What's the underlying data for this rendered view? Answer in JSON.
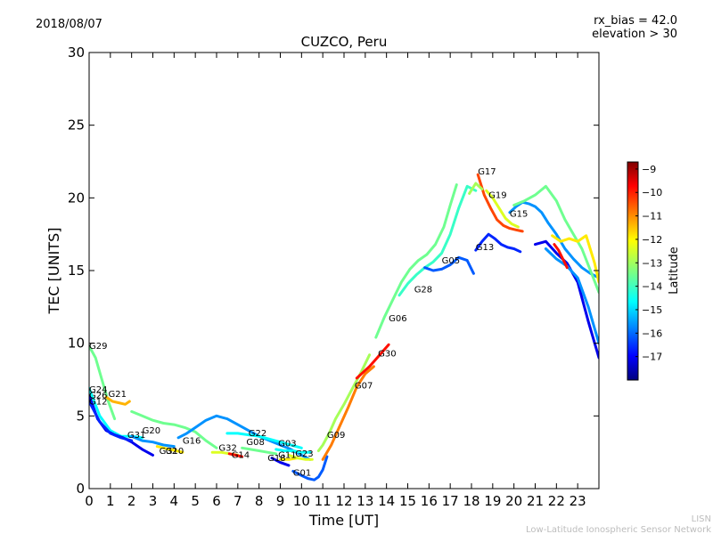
{
  "header": {
    "date": "2018/08/07",
    "rx_bias": "rx_bias = 42.0",
    "elevation": "elevation > 30"
  },
  "footer": {
    "line1": "LISN",
    "line2": "Low-Latitude Ionospheric Sensor Network"
  },
  "chart_data": {
    "type": "line",
    "title": "CUZCO, Peru",
    "xlabel": "Time [UT]",
    "ylabel": "TEC [UNITS]",
    "xlim": [
      0,
      24
    ],
    "ylim": [
      0,
      30
    ],
    "xticks": [
      0,
      1,
      2,
      3,
      4,
      5,
      6,
      7,
      8,
      9,
      10,
      11,
      12,
      13,
      14,
      15,
      16,
      17,
      18,
      19,
      20,
      21,
      22,
      23
    ],
    "yticks": [
      0,
      5,
      10,
      15,
      20,
      25,
      30
    ],
    "grid": false,
    "colorbar": {
      "label": "Latitude",
      "range": [
        -18,
        -8.7
      ],
      "ticks": [
        -17,
        -16,
        -15,
        -14,
        -13,
        -12,
        -11,
        -10,
        -9
      ],
      "colormap": "jet",
      "colors": [
        "#00007f",
        "#0000ff",
        "#007fff",
        "#00ffff",
        "#7fff7f",
        "#ffff00",
        "#ff7f00",
        "#ff0000",
        "#7f0000"
      ]
    },
    "series": [
      {
        "name": "G29",
        "lat": -13.5,
        "x": [
          0.0,
          0.3,
          0.6,
          0.9,
          1.2
        ],
        "y": [
          9.8,
          9.0,
          7.5,
          6.0,
          4.8
        ]
      },
      {
        "name": "G24",
        "lat": -14.5,
        "x": [
          0.0,
          0.5,
          1.0,
          1.5,
          2.0,
          2.5
        ],
        "y": [
          6.9,
          5.0,
          4.0,
          3.6,
          3.6,
          3.5
        ]
      },
      {
        "name": "G26",
        "lat": -17.0,
        "x": [
          0.0,
          0.4,
          0.8,
          1.2,
          1.6,
          2.0,
          2.5,
          3.0
        ],
        "y": [
          6.4,
          4.8,
          4.0,
          3.7,
          3.5,
          3.2,
          2.7,
          2.3
        ]
      },
      {
        "name": "G12",
        "lat": -16.5,
        "x": [
          0.0,
          0.5,
          1.0,
          1.5,
          2.0
        ],
        "y": [
          6.0,
          4.6,
          3.8,
          3.5,
          3.3
        ]
      },
      {
        "name": "G21",
        "lat": -11.5,
        "x": [
          0.8,
          1.1,
          1.4,
          1.7,
          1.9
        ],
        "y": [
          6.3,
          6.0,
          5.9,
          5.8,
          6.0
        ]
      },
      {
        "name": "G31",
        "lat": -15.5,
        "x": [
          2.0,
          2.5,
          3.0,
          3.5,
          4.0
        ],
        "y": [
          3.6,
          3.3,
          3.2,
          3.0,
          2.9
        ]
      },
      {
        "name": "G20",
        "lat": -13.5,
        "x": [
          2.0,
          2.5,
          3.0,
          3.5,
          4.0,
          4.5,
          5.0,
          5.5,
          6.0
        ],
        "y": [
          5.3,
          5.0,
          4.7,
          4.5,
          4.4,
          4.2,
          3.9,
          3.3,
          2.8
        ]
      },
      {
        "name": "G10",
        "lat": -12.0,
        "x": [
          3.2,
          3.5,
          3.8,
          4.1,
          4.4
        ],
        "y": [
          2.9,
          2.8,
          2.7,
          2.6,
          2.5
        ]
      },
      {
        "name": "G16",
        "lat": -15.5,
        "x": [
          4.2,
          4.6,
          5.0,
          5.5,
          6.0,
          6.5,
          7.0,
          7.5,
          8.0,
          8.5,
          9.0,
          9.5,
          10.0,
          10.4
        ],
        "y": [
          3.5,
          3.8,
          4.2,
          4.7,
          5.0,
          4.8,
          4.4,
          4.0,
          3.6,
          3.3,
          3.0,
          2.7,
          2.3,
          2.0
        ]
      },
      {
        "name": "G32",
        "lat": -12.5,
        "x": [
          5.8,
          6.2,
          6.6,
          7.0
        ],
        "y": [
          2.5,
          2.5,
          2.4,
          2.3
        ]
      },
      {
        "name": "G14",
        "lat": -10.0,
        "x": [
          6.6,
          6.9,
          7.2
        ],
        "y": [
          2.4,
          2.3,
          2.2
        ]
      },
      {
        "name": "G08",
        "lat": -13.5,
        "x": [
          7.2,
          7.6,
          8.0,
          8.4,
          8.8
        ],
        "y": [
          2.8,
          2.7,
          2.6,
          2.5,
          2.4
        ]
      },
      {
        "name": "G22",
        "lat": -14.5,
        "x": [
          6.5,
          7.0,
          7.5,
          8.0,
          8.5,
          9.0,
          9.5,
          10.0
        ],
        "y": [
          3.8,
          3.8,
          3.7,
          3.6,
          3.4,
          3.2,
          3.0,
          2.8
        ]
      },
      {
        "name": "G03",
        "lat": -14.5,
        "x": [
          8.8,
          9.2,
          9.6,
          10.0,
          10.4
        ],
        "y": [
          2.7,
          2.6,
          2.6,
          2.5,
          2.5
        ]
      },
      {
        "name": "G18",
        "lat": -17.0,
        "x": [
          8.6,
          9.0,
          9.4
        ],
        "y": [
          2.1,
          1.8,
          1.6
        ]
      },
      {
        "name": "G11",
        "lat": -12.0,
        "x": [
          9.0,
          9.4,
          9.8
        ],
        "y": [
          2.0,
          2.0,
          2.1
        ]
      },
      {
        "name": "G23",
        "lat": -12.5,
        "x": [
          9.4,
          9.8,
          10.2,
          10.5
        ],
        "y": [
          2.3,
          2.1,
          2.0,
          2.0
        ]
      },
      {
        "name": "G01",
        "lat": -16.0,
        "x": [
          9.6,
          10.0,
          10.3,
          10.6,
          10.8,
          11.0,
          11.2
        ],
        "y": [
          1.2,
          0.9,
          0.7,
          0.6,
          0.8,
          1.3,
          2.2
        ]
      },
      {
        "name": "G09",
        "lat": -13.0,
        "x": [
          10.8,
          11.0,
          11.3,
          11.6,
          12.0,
          12.4,
          12.8,
          13.2
        ],
        "y": [
          2.6,
          3.0,
          3.8,
          4.8,
          5.8,
          6.9,
          8.0,
          9.2
        ]
      },
      {
        "name": "G07",
        "lat": -11.0,
        "x": [
          11.0,
          11.4,
          11.8,
          12.2,
          12.6,
          13.0,
          13.4
        ],
        "y": [
          2.0,
          3.0,
          4.3,
          5.6,
          7.0,
          7.9,
          8.4
        ]
      },
      {
        "name": "G30",
        "lat": -10.0,
        "x": [
          12.6,
          12.9,
          13.2,
          13.5,
          13.8,
          14.1
        ],
        "y": [
          7.6,
          8.0,
          8.4,
          8.9,
          9.4,
          9.9
        ]
      },
      {
        "name": "G06",
        "lat": -13.5,
        "x": [
          13.5,
          13.9,
          14.3,
          14.7,
          15.1,
          15.5,
          15.9,
          16.3,
          16.7,
          17.0,
          17.3
        ],
        "y": [
          10.4,
          11.8,
          13.0,
          14.2,
          15.1,
          15.7,
          16.1,
          16.8,
          18.0,
          19.5,
          20.9
        ]
      },
      {
        "name": "G28",
        "lat": -14.0,
        "x": [
          14.6,
          15.0,
          15.4,
          15.8,
          16.2,
          16.6,
          17.0,
          17.4,
          17.8,
          18.2
        ],
        "y": [
          13.3,
          14.1,
          14.7,
          15.2,
          15.6,
          16.2,
          17.5,
          19.3,
          20.8,
          20.5
        ]
      },
      {
        "name": "G05",
        "lat": -16.0,
        "x": [
          15.8,
          16.2,
          16.6,
          17.0,
          17.4,
          17.8,
          18.1
        ],
        "y": [
          15.2,
          15.0,
          15.1,
          15.4,
          15.9,
          15.7,
          14.8
        ]
      },
      {
        "name": "G13",
        "lat": -16.5,
        "x": [
          18.2,
          18.5,
          18.8,
          19.1,
          19.4,
          19.7,
          20.0,
          20.3
        ],
        "y": [
          16.4,
          17.0,
          17.5,
          17.2,
          16.8,
          16.6,
          16.5,
          16.3
        ]
      },
      {
        "name": "G17",
        "lat": -10.5,
        "x": [
          18.3,
          18.6,
          18.9,
          19.2,
          19.5,
          19.8,
          20.1,
          20.4
        ],
        "y": [
          21.6,
          20.2,
          19.3,
          18.5,
          18.1,
          17.9,
          17.8,
          17.7
        ]
      },
      {
        "name": "G19",
        "lat": -12.5,
        "x": [
          18.7,
          19.0,
          19.3,
          19.6,
          19.9,
          20.2
        ],
        "y": [
          20.5,
          20.0,
          19.3,
          18.6,
          18.2,
          18.0
        ]
      },
      {
        "name": "G15",
        "lat": -15.5,
        "x": [
          19.8,
          20.1,
          20.4,
          20.7,
          21.0,
          21.3,
          21.6,
          22.0,
          22.4,
          22.8,
          23.2,
          23.6,
          24.0
        ],
        "y": [
          19.0,
          19.4,
          19.7,
          19.6,
          19.4,
          19.0,
          18.3,
          17.5,
          16.5,
          15.8,
          15.2,
          14.8,
          14.5
        ]
      },
      {
        "name": "",
        "lat": -13.5,
        "x": [
          20.0,
          20.5,
          21.0,
          21.5,
          22.0,
          22.4,
          22.8,
          23.2,
          23.6,
          24.0
        ],
        "y": [
          19.5,
          19.8,
          20.2,
          20.8,
          19.8,
          18.5,
          17.5,
          16.5,
          15.0,
          13.5
        ]
      },
      {
        "name": "",
        "lat": -12.0,
        "x": [
          21.8,
          22.2,
          22.6,
          23.0,
          23.4,
          23.8,
          24.0
        ],
        "y": [
          17.4,
          17.0,
          17.2,
          17.0,
          17.4,
          15.5,
          14.2
        ]
      },
      {
        "name": "",
        "lat": -17.0,
        "x": [
          21.0,
          21.5,
          22.0,
          22.5,
          23.0,
          23.5,
          24.0
        ],
        "y": [
          16.8,
          17.0,
          16.2,
          15.5,
          14.2,
          11.5,
          9.0
        ]
      },
      {
        "name": "",
        "lat": -15.5,
        "x": [
          21.5,
          22.0,
          22.5,
          23.0,
          23.5,
          24.0
        ],
        "y": [
          16.5,
          15.8,
          15.3,
          14.5,
          12.5,
          10.0
        ]
      },
      {
        "name": "",
        "lat": -10.0,
        "x": [
          21.9,
          22.1,
          22.3,
          22.5
        ],
        "y": [
          16.8,
          16.4,
          15.8,
          15.2
        ]
      },
      {
        "name": "",
        "lat": -13.0,
        "x": [
          17.9,
          18.2,
          18.5
        ],
        "y": [
          20.3,
          21.0,
          20.6
        ]
      }
    ],
    "labels": [
      {
        "text": "G29",
        "x": 0.0,
        "y": 9.6
      },
      {
        "text": "G24",
        "x": 0.0,
        "y": 6.6
      },
      {
        "text": "G26",
        "x": 0.0,
        "y": 6.2
      },
      {
        "text": "G12",
        "x": 0.0,
        "y": 5.8
      },
      {
        "text": "G21",
        "x": 0.9,
        "y": 6.3
      },
      {
        "text": "G31",
        "x": 1.8,
        "y": 3.5
      },
      {
        "text": "G20",
        "x": 2.5,
        "y": 3.8
      },
      {
        "text": "G32",
        "x": 3.3,
        "y": 2.4
      },
      {
        "text": "G10",
        "x": 3.6,
        "y": 2.4
      },
      {
        "text": "G16",
        "x": 4.4,
        "y": 3.1
      },
      {
        "text": "G32",
        "x": 6.1,
        "y": 2.6
      },
      {
        "text": "G14",
        "x": 6.7,
        "y": 2.1
      },
      {
        "text": "G22",
        "x": 7.5,
        "y": 3.6
      },
      {
        "text": "G08",
        "x": 7.4,
        "y": 3.0
      },
      {
        "text": "G03",
        "x": 8.9,
        "y": 2.9
      },
      {
        "text": "G18",
        "x": 8.4,
        "y": 1.9
      },
      {
        "text": "G11",
        "x": 8.9,
        "y": 2.1
      },
      {
        "text": "G23",
        "x": 9.7,
        "y": 2.2
      },
      {
        "text": "G01",
        "x": 9.6,
        "y": 0.9
      },
      {
        "text": "G09",
        "x": 11.2,
        "y": 3.5
      },
      {
        "text": "G07",
        "x": 12.5,
        "y": 6.9
      },
      {
        "text": "G30",
        "x": 13.6,
        "y": 9.1
      },
      {
        "text": "G06",
        "x": 14.1,
        "y": 11.5
      },
      {
        "text": "G28",
        "x": 15.3,
        "y": 13.5
      },
      {
        "text": "G05",
        "x": 16.6,
        "y": 15.5
      },
      {
        "text": "G13",
        "x": 18.2,
        "y": 16.4
      },
      {
        "text": "G17",
        "x": 18.3,
        "y": 21.6
      },
      {
        "text": "G19",
        "x": 18.8,
        "y": 20.0
      },
      {
        "text": "G15",
        "x": 19.8,
        "y": 18.7
      }
    ]
  }
}
